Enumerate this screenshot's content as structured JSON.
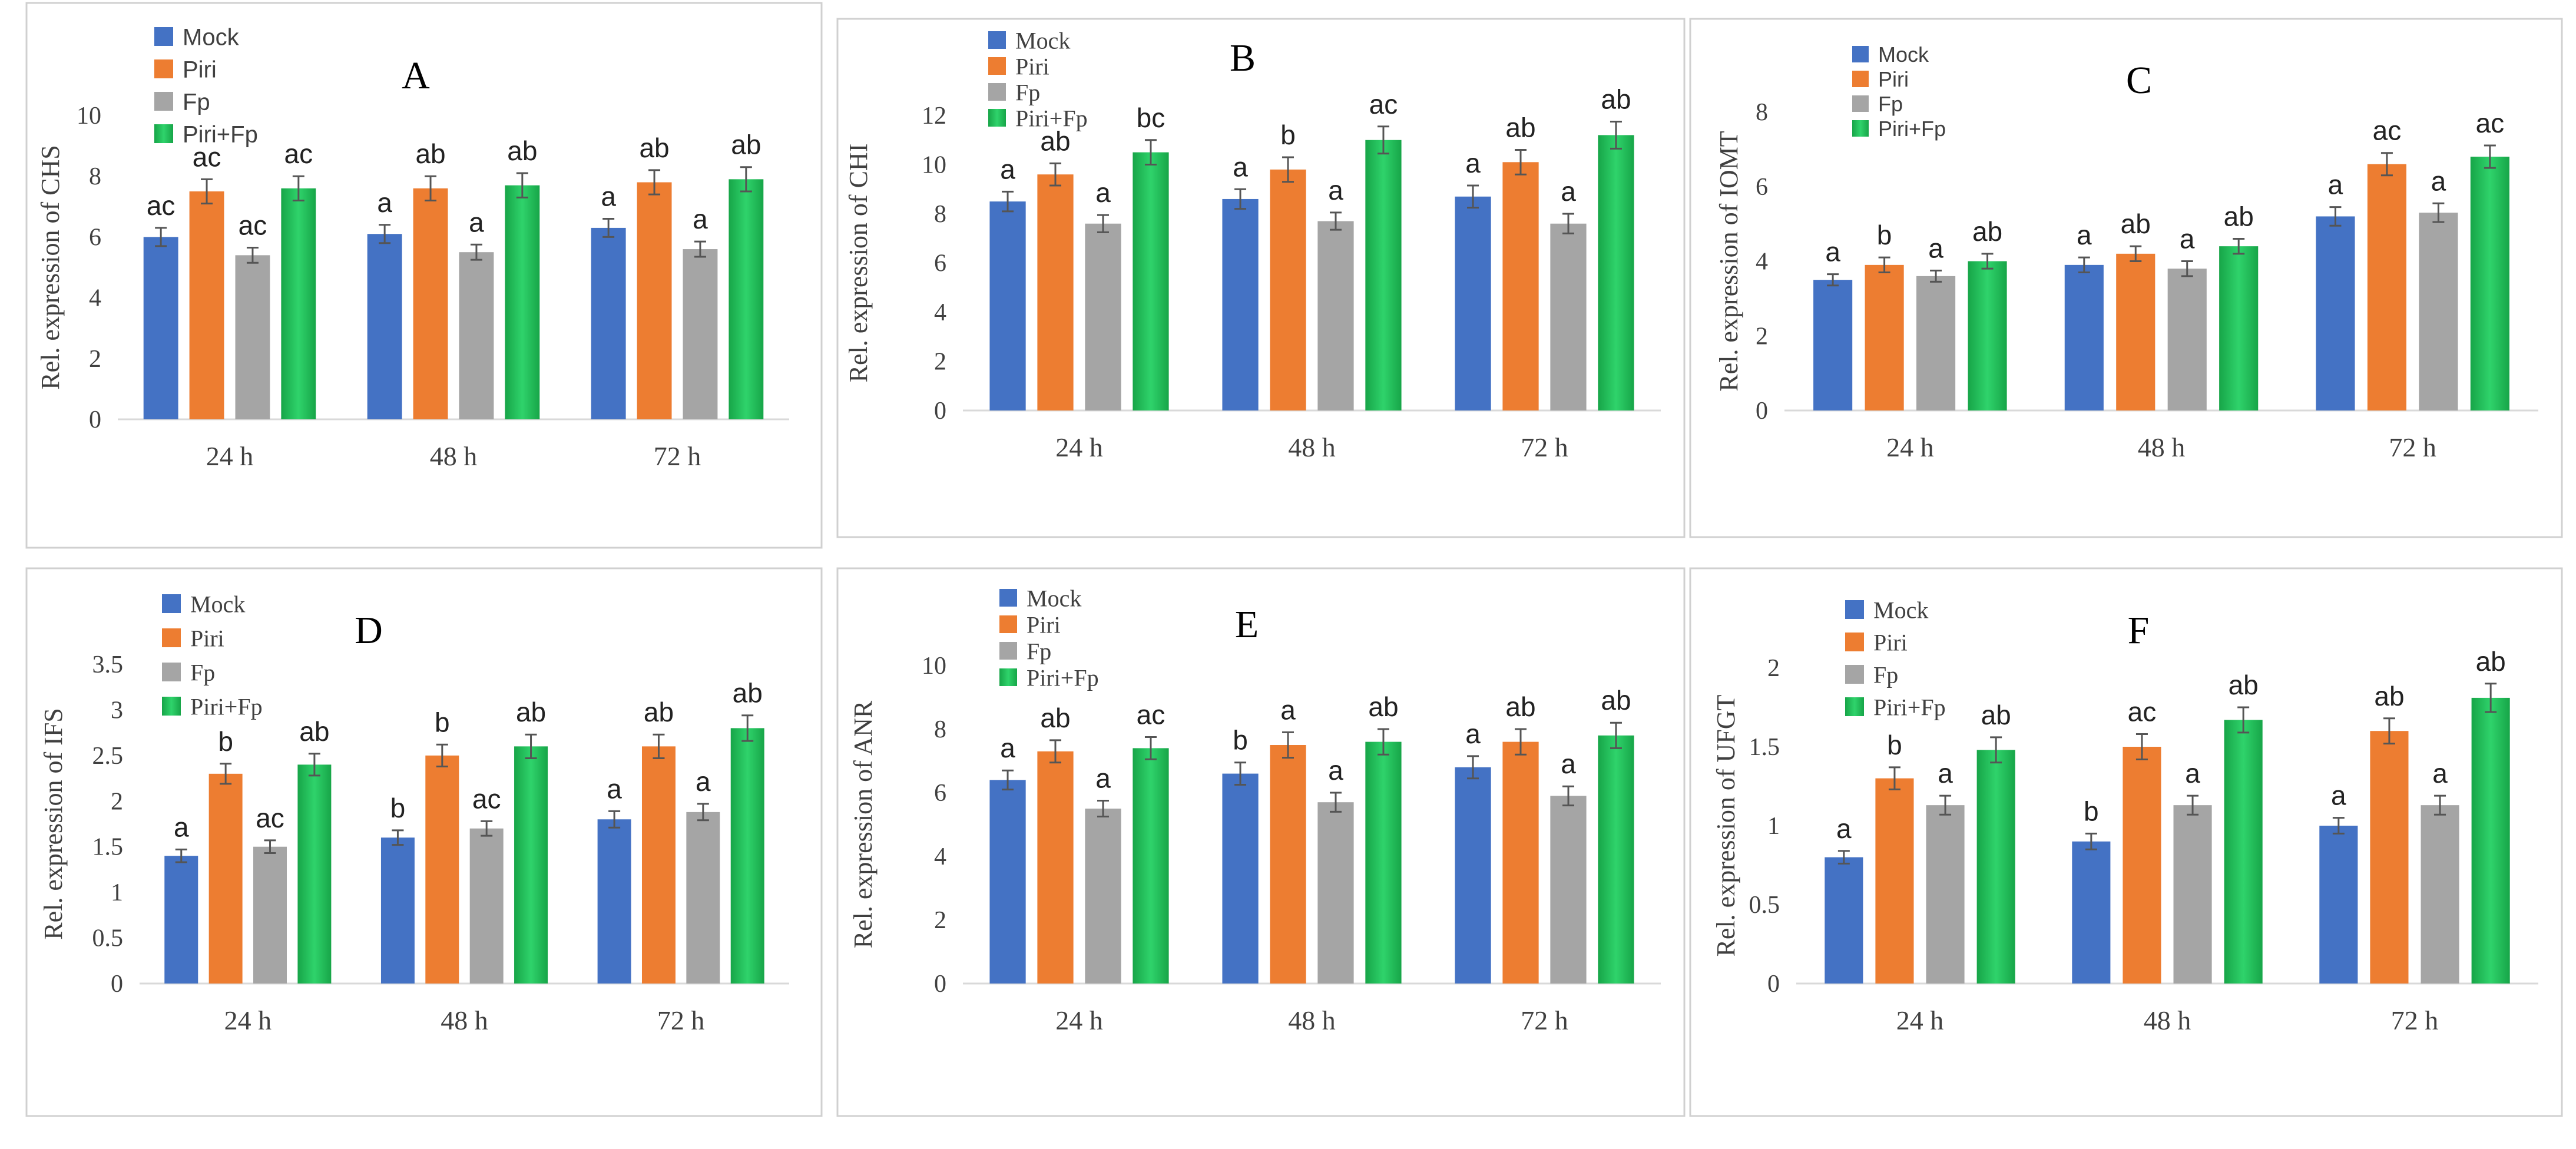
{
  "colors": {
    "Mock": "#4472C4",
    "Piri": "#ED7D31",
    "Fp": "#A5A5A5",
    "Piri+Fp": "#1BAE4F",
    "Piri+Fp_light": "#2FD36B",
    "text": "#404040"
  },
  "chart_data": [
    {
      "type": "bar",
      "panel_letter": "A",
      "ylabel": "Rel. expression of CHS",
      "categories": [
        "24 h",
        "48 h",
        "72 h"
      ],
      "yticks": [
        "0",
        "2",
        "4",
        "6",
        "8",
        "10"
      ],
      "ylim": [
        0,
        10
      ],
      "legend": [
        "Mock",
        "Piri",
        "Fp",
        "Piri+Fp"
      ],
      "series": [
        {
          "name": "Mock",
          "values": [
            6.0,
            6.1,
            6.3
          ],
          "err": [
            0.3,
            0.3,
            0.3
          ],
          "labels": [
            "ac",
            "a",
            "a"
          ]
        },
        {
          "name": "Piri",
          "values": [
            7.5,
            7.6,
            7.8
          ],
          "err": [
            0.4,
            0.4,
            0.4
          ],
          "labels": [
            "ac",
            "ab",
            "ab"
          ]
        },
        {
          "name": "Fp",
          "values": [
            5.4,
            5.5,
            5.6
          ],
          "err": [
            0.25,
            0.25,
            0.25
          ],
          "labels": [
            "ac",
            "a",
            "a"
          ]
        },
        {
          "name": "Piri+Fp",
          "values": [
            7.6,
            7.7,
            7.9
          ],
          "err": [
            0.4,
            0.4,
            0.4
          ],
          "labels": [
            "ac",
            "ab",
            "ab"
          ]
        }
      ]
    },
    {
      "type": "bar",
      "panel_letter": "B",
      "ylabel": "Rel. expression of CHI",
      "categories": [
        "24 h",
        "48 h",
        "72 h"
      ],
      "yticks": [
        "0",
        "2",
        "4",
        "6",
        "8",
        "10",
        "12"
      ],
      "ylim": [
        0,
        12
      ],
      "legend": [
        "Mock",
        "Piri",
        "Fp",
        "Piri+Fp"
      ],
      "series": [
        {
          "name": "Mock",
          "values": [
            8.5,
            8.6,
            8.7
          ],
          "err": [
            0.4,
            0.4,
            0.45
          ],
          "labels": [
            "a",
            "a",
            "a"
          ]
        },
        {
          "name": "Piri",
          "values": [
            9.6,
            9.8,
            10.1
          ],
          "err": [
            0.45,
            0.5,
            0.5
          ],
          "labels": [
            "ab",
            "b",
            "ab"
          ]
        },
        {
          "name": "Fp",
          "values": [
            7.6,
            7.7,
            7.6
          ],
          "err": [
            0.35,
            0.35,
            0.4
          ],
          "labels": [
            "a",
            "a",
            "a"
          ]
        },
        {
          "name": "Piri+Fp",
          "values": [
            10.5,
            11.0,
            11.2
          ],
          "err": [
            0.5,
            0.55,
            0.55
          ],
          "labels": [
            "bc",
            "ac",
            "ab"
          ]
        }
      ]
    },
    {
      "type": "bar",
      "panel_letter": "C",
      "ylabel": "Rel. expression of IOMT",
      "categories": [
        "24 h",
        "48 h",
        "72 h"
      ],
      "yticks": [
        "0",
        "2",
        "4",
        "6",
        "8"
      ],
      "ylim": [
        0,
        8
      ],
      "legend": [
        "Mock",
        "Piri",
        "Fp",
        "Piri+Fp"
      ],
      "series": [
        {
          "name": "Mock",
          "values": [
            3.5,
            3.9,
            5.2
          ],
          "err": [
            0.15,
            0.2,
            0.25
          ],
          "labels": [
            "a",
            "a",
            "a"
          ]
        },
        {
          "name": "Piri",
          "values": [
            3.9,
            4.2,
            6.6
          ],
          "err": [
            0.2,
            0.2,
            0.3
          ],
          "labels": [
            "b",
            "ab",
            "ac"
          ]
        },
        {
          "name": "Fp",
          "values": [
            3.6,
            3.8,
            5.3
          ],
          "err": [
            0.15,
            0.2,
            0.25
          ],
          "labels": [
            "a",
            "a",
            "a"
          ]
        },
        {
          "name": "Piri+Fp",
          "values": [
            4.0,
            4.4,
            6.8
          ],
          "err": [
            0.2,
            0.2,
            0.3
          ],
          "labels": [
            "ab",
            "ab",
            "ac"
          ]
        }
      ]
    },
    {
      "type": "bar",
      "panel_letter": "D",
      "ylabel": "Rel. expression of IFS",
      "categories": [
        "24 h",
        "48 h",
        "72 h"
      ],
      "yticks": [
        "0",
        "0.5",
        "1",
        "1.5",
        "2",
        "2.5",
        "3",
        "3.5"
      ],
      "ylim": [
        0,
        3.5
      ],
      "legend": [
        "Mock",
        "Piri",
        "Fp",
        "Piri+Fp"
      ],
      "series": [
        {
          "name": "Mock",
          "values": [
            1.4,
            1.6,
            1.8
          ],
          "err": [
            0.07,
            0.08,
            0.09
          ],
          "labels": [
            "a",
            "b",
            "a"
          ]
        },
        {
          "name": "Piri",
          "values": [
            2.3,
            2.5,
            2.6
          ],
          "err": [
            0.11,
            0.12,
            0.13
          ],
          "labels": [
            "b",
            "b",
            "ab"
          ]
        },
        {
          "name": "Fp",
          "values": [
            1.5,
            1.7,
            1.88
          ],
          "err": [
            0.07,
            0.08,
            0.09
          ],
          "labels": [
            "ac",
            "ac",
            "a"
          ]
        },
        {
          "name": "Piri+Fp",
          "values": [
            2.4,
            2.6,
            2.8
          ],
          "err": [
            0.12,
            0.13,
            0.14
          ],
          "labels": [
            "ab",
            "ab",
            "ab"
          ]
        }
      ]
    },
    {
      "type": "bar",
      "panel_letter": "E",
      "ylabel": "Rel. expression of ANR",
      "categories": [
        "24 h",
        "48 h",
        "72 h"
      ],
      "yticks": [
        "0",
        "2",
        "4",
        "6",
        "8",
        "10"
      ],
      "ylim": [
        0,
        10
      ],
      "legend": [
        "Mock",
        "Piri",
        "Fp",
        "Piri+Fp"
      ],
      "series": [
        {
          "name": "Mock",
          "values": [
            6.4,
            6.6,
            6.8
          ],
          "err": [
            0.3,
            0.35,
            0.35
          ],
          "labels": [
            "a",
            "b",
            "a"
          ]
        },
        {
          "name": "Piri",
          "values": [
            7.3,
            7.5,
            7.6
          ],
          "err": [
            0.35,
            0.4,
            0.4
          ],
          "labels": [
            "ab",
            "a",
            "ab"
          ]
        },
        {
          "name": "Fp",
          "values": [
            5.5,
            5.7,
            5.9
          ],
          "err": [
            0.25,
            0.3,
            0.3
          ],
          "labels": [
            "a",
            "a",
            "a"
          ]
        },
        {
          "name": "Piri+Fp",
          "values": [
            7.4,
            7.6,
            7.8
          ],
          "err": [
            0.35,
            0.4,
            0.4
          ],
          "labels": [
            "ac",
            "ab",
            "ab"
          ]
        }
      ]
    },
    {
      "type": "bar",
      "panel_letter": "F",
      "ylabel": "Rel. expression of  UFGT",
      "categories": [
        "24 h",
        "48 h",
        "72 h"
      ],
      "yticks": [
        "0",
        "0.5",
        "1",
        "1.5",
        "2"
      ],
      "ylim": [
        0,
        2
      ],
      "legend": [
        "Mock",
        "Piri",
        "Fp",
        "Piri+Fp"
      ],
      "series": [
        {
          "name": "Mock",
          "values": [
            0.8,
            0.9,
            1.0
          ],
          "err": [
            0.04,
            0.05,
            0.05
          ],
          "labels": [
            "a",
            "b",
            "a"
          ]
        },
        {
          "name": "Piri",
          "values": [
            1.3,
            1.5,
            1.6
          ],
          "err": [
            0.07,
            0.08,
            0.08
          ],
          "labels": [
            "b",
            "ac",
            "ab"
          ]
        },
        {
          "name": "Fp",
          "values": [
            1.13,
            1.13,
            1.13
          ],
          "err": [
            0.06,
            0.06,
            0.06
          ],
          "labels": [
            "a",
            "a",
            "a"
          ]
        },
        {
          "name": "Piri+Fp",
          "values": [
            1.48,
            1.67,
            1.81
          ],
          "err": [
            0.08,
            0.08,
            0.09
          ],
          "labels": [
            "ab",
            "ab",
            "ab"
          ]
        }
      ]
    }
  ]
}
